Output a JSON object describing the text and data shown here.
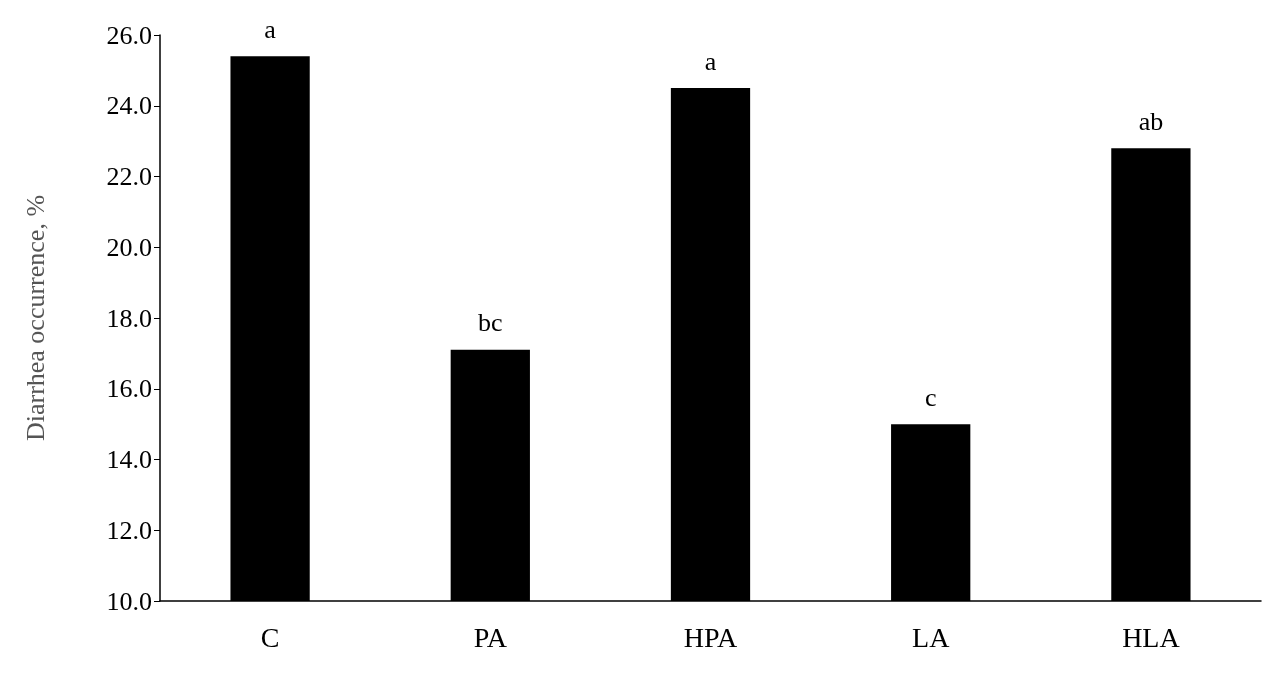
{
  "chart_data": {
    "type": "bar",
    "ylabel": "Diarrhea occurrence, %",
    "categories": [
      "C",
      "PA",
      "HPA",
      "LA",
      "HLA"
    ],
    "values": [
      25.4,
      17.1,
      24.5,
      15.0,
      22.8
    ],
    "color": "#000000",
    "ylim": [
      10,
      26
    ],
    "yticks": [
      {
        "value": 10,
        "label": "10.0"
      },
      {
        "value": 12,
        "label": "12.0"
      },
      {
        "value": 14,
        "label": "14.0"
      },
      {
        "value": 16,
        "label": "16.0"
      },
      {
        "value": 18,
        "label": "18.0"
      },
      {
        "value": 20,
        "label": "20.0"
      },
      {
        "value": 22,
        "label": "22.0"
      },
      {
        "value": 24,
        "label": "24.0"
      },
      {
        "value": 26,
        "label": "26.0"
      }
    ],
    "annotations": [
      {
        "text": "a",
        "x": "C",
        "y": 25.4
      },
      {
        "text": "bc",
        "x": "PA",
        "y": 17.1
      },
      {
        "text": "a",
        "x": "HPA",
        "y": 24.5
      },
      {
        "text": "c",
        "x": "LA",
        "y": 15.0
      },
      {
        "text": "ab",
        "x": "HLA",
        "y": 22.8
      }
    ],
    "grid": false
  }
}
